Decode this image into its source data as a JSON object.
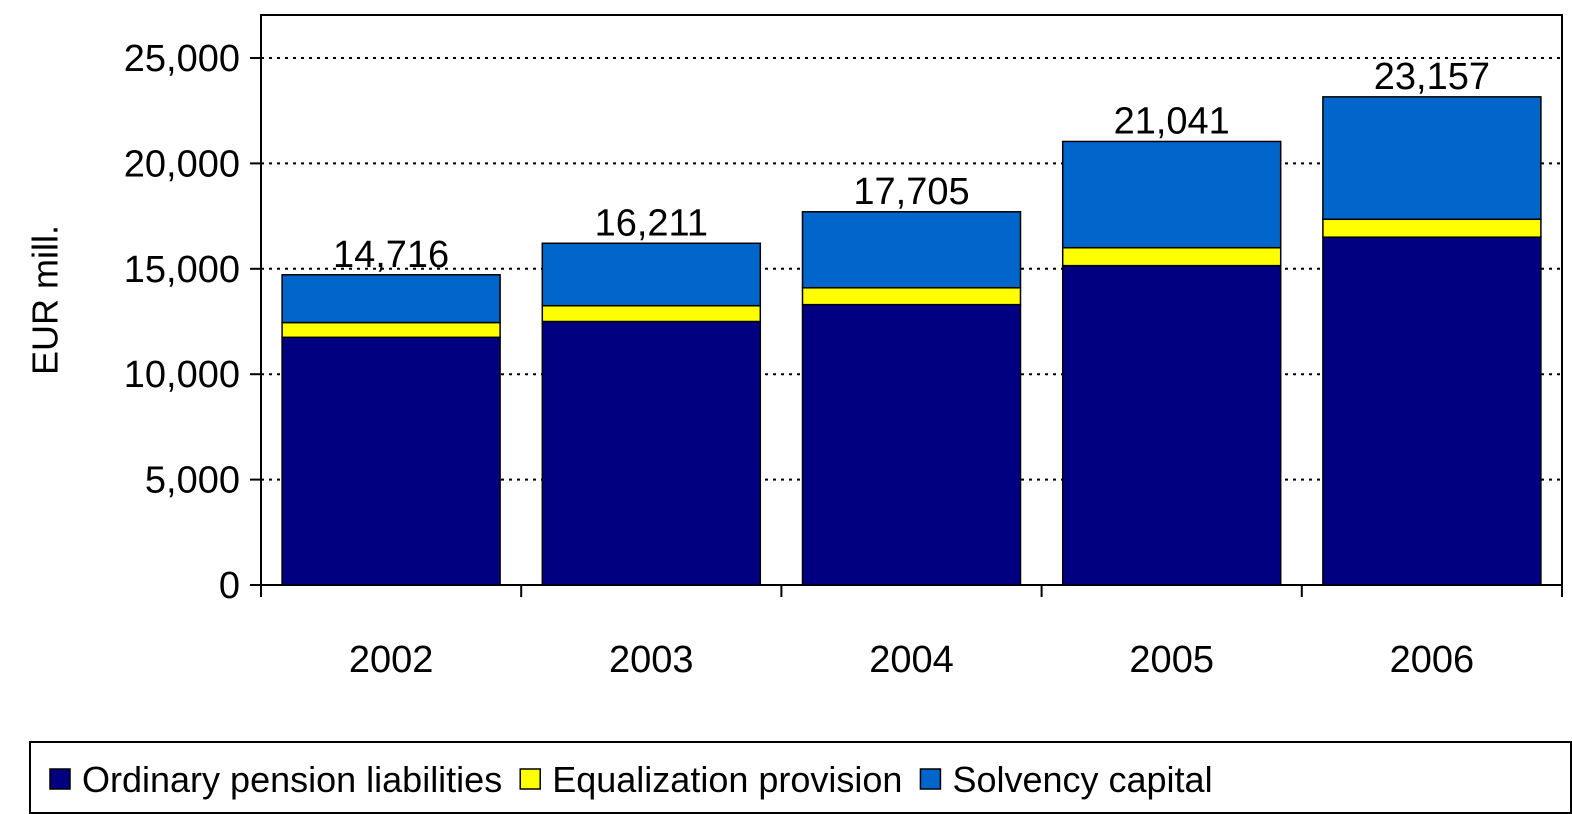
{
  "chart_data": {
    "type": "stacked_bar",
    "y_axis_label": "EUR mill.",
    "categories": [
      "2002",
      "2003",
      "2004",
      "2005",
      "2006"
    ],
    "series": [
      {
        "name": "Ordinary pension liabilities",
        "color": "#000080",
        "values": [
          11750,
          12500,
          13300,
          15150,
          16500
        ]
      },
      {
        "name": "Equalization provision",
        "color": "#ffff00",
        "values": [
          700,
          750,
          800,
          850,
          850
        ]
      },
      {
        "name": "Solvency capital",
        "color": "#0066cc",
        "values": [
          2266,
          2961,
          3605,
          5041,
          5807
        ]
      }
    ],
    "totals": [
      14716,
      16211,
      17705,
      21041,
      23157
    ],
    "total_labels": [
      "14,716",
      "16,211",
      "17,705",
      "21,041",
      "23,157"
    ],
    "ylim": [
      0,
      25000
    ],
    "yticks": [
      0,
      {
        "value": 5000,
        "label": "5,000"
      },
      {
        "value": 10000,
        "label": "10,000"
      },
      {
        "value": 15000,
        "label": "15,000"
      },
      {
        "value": 20000,
        "label": "20,000"
      },
      {
        "value": 25000,
        "label": "25,000"
      }
    ],
    "grid": true
  }
}
